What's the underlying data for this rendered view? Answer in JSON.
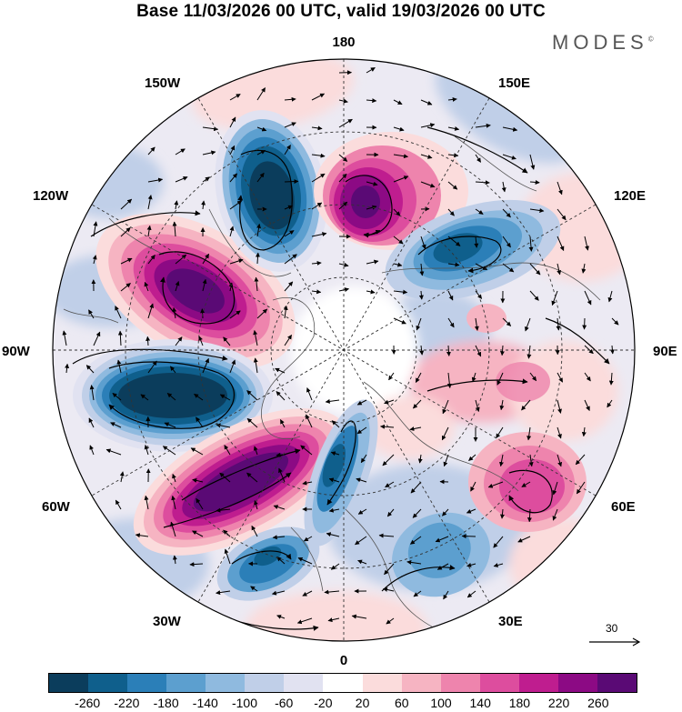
{
  "title": "Base 11/03/2026 00 UTC, valid 19/03/2026 00 UTC",
  "brand": {
    "name": "MODES",
    "mark": "©"
  },
  "longitude_labels": {
    "lon_180": "180",
    "lon_150e": "150E",
    "lon_120e": "120E",
    "lon_90e": "90E",
    "lon_60e": "60E",
    "lon_30e": "30E",
    "lon_0": "0",
    "lon_30w": "30W",
    "lon_60w": "60W",
    "lon_90w": "90W",
    "lon_120w": "120W",
    "lon_150w": "150W"
  },
  "reference_vector": {
    "label": "30"
  },
  "colorbar": {
    "colors": [
      "#0b3d5c",
      "#0f5f8c",
      "#2b7fb8",
      "#5c9fcf",
      "#8fbadf",
      "#c0cfe8",
      "#e1e2f1",
      "#ffffff",
      "#fbdcdc",
      "#f6b4c2",
      "#ee84ad",
      "#dd4d9e",
      "#bf1d8f",
      "#8c0a84",
      "#5a0a75"
    ],
    "ticks": [
      "-260",
      "-220",
      "-180",
      "-140",
      "-100",
      "-60",
      "-20",
      "20",
      "60",
      "100",
      "140",
      "180",
      "220",
      "260"
    ]
  },
  "colors": {
    "positive_strong": "#5a0a75",
    "positive_mid": "#bf1d8f",
    "positive_light": "#f6b4c2",
    "negative_strong": "#0b3d5c",
    "negative_mid": "#2b7fb8",
    "negative_light": "#c0cfe8"
  }
}
